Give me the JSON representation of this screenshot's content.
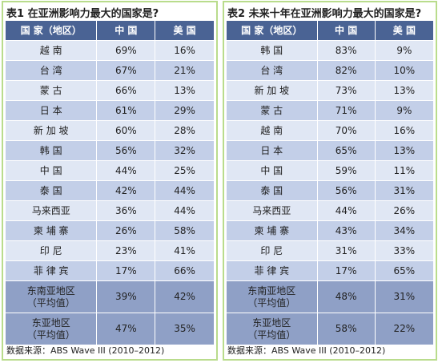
{
  "tables": [
    {
      "title": "表1 在亚洲影响力最大的国家是?",
      "header": [
        "国 家（地区）",
        "中 国",
        "美 国"
      ],
      "rows": [
        [
          "越 南",
          "69%",
          "16%"
        ],
        [
          "台 湾",
          "67%",
          "21%"
        ],
        [
          "蒙 古",
          "66%",
          "13%"
        ],
        [
          "日 本",
          "61%",
          "29%"
        ],
        [
          "新 加 坡",
          "60%",
          "28%"
        ],
        [
          "韩 国",
          "56%",
          "32%"
        ],
        [
          "中 国",
          "44%",
          "25%"
        ],
        [
          "泰 国",
          "42%",
          "44%"
        ],
        [
          "马来西亚",
          "36%",
          "44%"
        ],
        [
          "柬 埔 寨",
          "26%",
          "58%"
        ],
        [
          "印 尼",
          "23%",
          "41%"
        ],
        [
          "菲 律 宾",
          "17%",
          "66%"
        ]
      ],
      "summary": [
        [
          [
            "东南亚地区",
            "（平均值）"
          ],
          "39%",
          "42%"
        ],
        [
          [
            "东亚地区",
            "（平均值）"
          ],
          "47%",
          "35%"
        ]
      ],
      "source": "数据来源：ABS Wave III (2010–2012)"
    },
    {
      "title": "表2 未来十年在亚洲影响力最大的国家是?",
      "header": [
        "国 家（地区）",
        "中 国",
        "美 国"
      ],
      "rows": [
        [
          "韩 国",
          "83%",
          "9%"
        ],
        [
          "台 湾",
          "82%",
          "10%"
        ],
        [
          "新 加 坡",
          "73%",
          "13%"
        ],
        [
          "蒙 古",
          "71%",
          "9%"
        ],
        [
          "越 南",
          "70%",
          "16%"
        ],
        [
          "日 本",
          "65%",
          "13%"
        ],
        [
          "中 国",
          "59%",
          "11%"
        ],
        [
          "泰 国",
          "56%",
          "31%"
        ],
        [
          "马来西亚",
          "44%",
          "26%"
        ],
        [
          "柬 埔 寨",
          "43%",
          "34%"
        ],
        [
          "印 尼",
          "31%",
          "33%"
        ],
        [
          "菲 律 宾",
          "17%",
          "65%"
        ]
      ],
      "summary": [
        [
          [
            "东南亚地区",
            "（平均值）"
          ],
          "48%",
          "31%"
        ],
        [
          [
            "东亚地区",
            "（平均值）"
          ],
          "58%",
          "22%"
        ]
      ],
      "source": "数据来源：ABS Wave III (2010–2012)"
    }
  ]
}
